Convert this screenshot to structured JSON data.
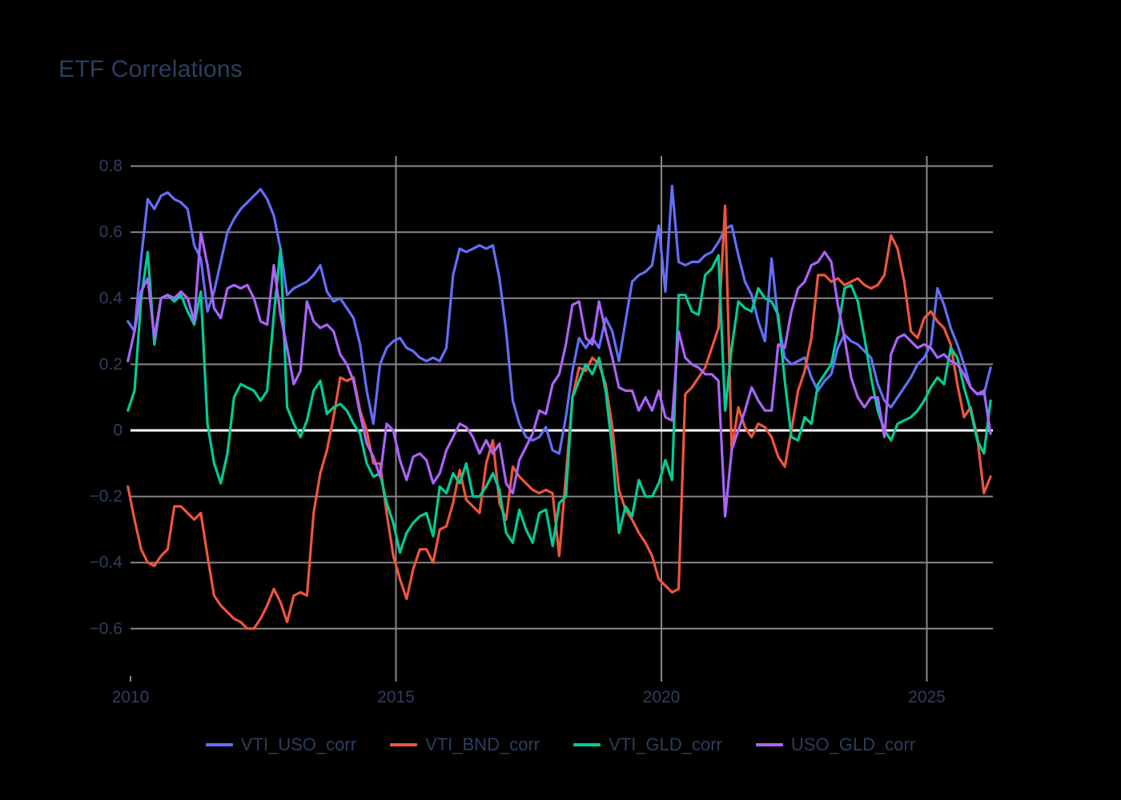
{
  "title": "ETF Correlations",
  "colors": {
    "background": "#000000",
    "text": "#2a3f5f",
    "gridline": "#888888",
    "zeroline": "#ffffff",
    "series_blue": "#636EFA",
    "series_red": "#EF553B",
    "series_green": "#00CC96",
    "series_purple": "#AB63FA"
  },
  "chart_data": {
    "type": "line",
    "title": "ETF Correlations",
    "xlabel": "",
    "ylabel": "",
    "grid": true,
    "legend_position": "bottom-center",
    "xlim": [
      2009.93,
      2026.33
    ],
    "ylim": [
      -0.74,
      0.83
    ],
    "x_ticks": [
      2010,
      2015,
      2020,
      2025
    ],
    "x_tick_labels": [
      "2010",
      "2015",
      "2020",
      "2025"
    ],
    "y_ticks": [
      0.8,
      0.6,
      0.4,
      0.2,
      0,
      -0.2,
      -0.4,
      -0.6
    ],
    "y_tick_labels": [
      "0.8",
      "0.6",
      "0.4",
      "0.2",
      "0",
      "−0.2",
      "−0.4",
      "−0.6"
    ],
    "zeroline_value": 0,
    "x_start": 2009.95,
    "x_step": 0.125,
    "series": [
      {
        "name": "VTI_USO_corr",
        "color": "#636EFA",
        "values": [
          0.33,
          0.3,
          0.52,
          0.7,
          0.67,
          0.71,
          0.72,
          0.7,
          0.69,
          0.67,
          0.56,
          0.52,
          0.36,
          0.42,
          0.51,
          0.6,
          0.64,
          0.67,
          0.69,
          0.71,
          0.73,
          0.7,
          0.65,
          0.55,
          0.41,
          0.43,
          0.44,
          0.45,
          0.47,
          0.5,
          0.42,
          0.39,
          0.4,
          0.37,
          0.34,
          0.26,
          0.12,
          0.02,
          0.2,
          0.25,
          0.27,
          0.28,
          0.25,
          0.24,
          0.22,
          0.21,
          0.22,
          0.21,
          0.25,
          0.47,
          0.55,
          0.54,
          0.55,
          0.56,
          0.55,
          0.56,
          0.46,
          0.3,
          0.09,
          0.02,
          -0.02,
          -0.03,
          -0.02,
          0.01,
          -0.06,
          -0.07,
          0.04,
          0.18,
          0.28,
          0.25,
          0.28,
          0.25,
          0.34,
          0.3,
          0.21,
          0.33,
          0.45,
          0.47,
          0.48,
          0.5,
          0.62,
          0.42,
          0.74,
          0.51,
          0.5,
          0.51,
          0.51,
          0.53,
          0.54,
          0.57,
          0.61,
          0.62,
          0.53,
          0.45,
          0.41,
          0.33,
          0.27,
          0.52,
          0.33,
          0.22,
          0.2,
          0.21,
          0.22,
          0.16,
          0.12,
          0.15,
          0.17,
          0.25,
          0.29,
          0.27,
          0.26,
          0.24,
          0.22,
          0.14,
          0.09,
          0.07,
          0.1,
          0.13,
          0.16,
          0.2,
          0.22,
          0.26,
          0.43,
          0.38,
          0.31,
          0.26,
          0.2,
          0.13,
          0.11,
          0.11,
          0.19
        ]
      },
      {
        "name": "VTI_BND_corr",
        "color": "#EF553B",
        "values": [
          -0.17,
          -0.27,
          -0.36,
          -0.4,
          -0.41,
          -0.38,
          -0.36,
          -0.23,
          -0.23,
          -0.25,
          -0.27,
          -0.25,
          -0.38,
          -0.5,
          -0.53,
          -0.55,
          -0.57,
          -0.58,
          -0.6,
          -0.6,
          -0.57,
          -0.53,
          -0.48,
          -0.52,
          -0.58,
          -0.5,
          -0.49,
          -0.5,
          -0.25,
          -0.13,
          -0.06,
          0.04,
          0.16,
          0.15,
          0.16,
          0.06,
          0.0,
          -0.1,
          -0.1,
          -0.25,
          -0.38,
          -0.45,
          -0.51,
          -0.42,
          -0.36,
          -0.36,
          -0.4,
          -0.3,
          -0.29,
          -0.22,
          -0.12,
          -0.21,
          -0.23,
          -0.25,
          -0.1,
          -0.03,
          -0.22,
          -0.27,
          -0.11,
          -0.14,
          -0.16,
          -0.18,
          -0.19,
          -0.18,
          -0.19,
          -0.38,
          -0.14,
          0.1,
          0.19,
          0.18,
          0.22,
          0.2,
          0.14,
          0.01,
          -0.18,
          -0.24,
          -0.27,
          -0.31,
          -0.34,
          -0.38,
          -0.45,
          -0.47,
          -0.49,
          -0.48,
          0.11,
          0.13,
          0.16,
          0.19,
          0.25,
          0.31,
          0.68,
          -0.06,
          0.07,
          0.01,
          -0.02,
          0.02,
          0.01,
          -0.02,
          -0.08,
          -0.11,
          0.0,
          0.12,
          0.18,
          0.28,
          0.47,
          0.47,
          0.45,
          0.46,
          0.44,
          0.45,
          0.46,
          0.44,
          0.43,
          0.44,
          0.47,
          0.59,
          0.55,
          0.45,
          0.3,
          0.28,
          0.34,
          0.36,
          0.33,
          0.31,
          0.26,
          0.14,
          0.04,
          0.07,
          -0.02,
          -0.19,
          -0.14
        ]
      },
      {
        "name": "VTI_GLD_corr",
        "color": "#00CC96",
        "values": [
          0.06,
          0.12,
          0.4,
          0.54,
          0.26,
          0.4,
          0.41,
          0.39,
          0.41,
          0.36,
          0.32,
          0.42,
          0.02,
          -0.1,
          -0.16,
          -0.07,
          0.1,
          0.14,
          0.13,
          0.12,
          0.09,
          0.12,
          0.35,
          0.55,
          0.07,
          0.02,
          -0.02,
          0.03,
          0.12,
          0.15,
          0.05,
          0.07,
          0.08,
          0.06,
          0.02,
          -0.01,
          -0.1,
          -0.14,
          -0.13,
          -0.22,
          -0.28,
          -0.37,
          -0.31,
          -0.28,
          -0.26,
          -0.25,
          -0.32,
          -0.17,
          -0.19,
          -0.13,
          -0.16,
          -0.1,
          -0.2,
          -0.2,
          -0.17,
          -0.13,
          -0.18,
          -0.31,
          -0.34,
          -0.24,
          -0.3,
          -0.34,
          -0.25,
          -0.24,
          -0.35,
          -0.22,
          -0.2,
          0.1,
          0.15,
          0.2,
          0.17,
          0.22,
          0.12,
          -0.06,
          -0.31,
          -0.23,
          -0.26,
          -0.15,
          -0.2,
          -0.2,
          -0.16,
          -0.09,
          -0.15,
          0.41,
          0.41,
          0.36,
          0.35,
          0.47,
          0.49,
          0.53,
          0.06,
          0.25,
          0.39,
          0.37,
          0.36,
          0.43,
          0.4,
          0.39,
          0.35,
          0.15,
          -0.02,
          -0.03,
          0.04,
          0.02,
          0.14,
          0.17,
          0.2,
          0.3,
          0.43,
          0.44,
          0.39,
          0.28,
          0.16,
          0.06,
          0.0,
          -0.03,
          0.02,
          0.03,
          0.04,
          0.06,
          0.09,
          0.13,
          0.16,
          0.14,
          0.25,
          0.22,
          0.13,
          0.06,
          -0.03,
          -0.07,
          0.09
        ]
      },
      {
        "name": "USO_GLD_corr",
        "color": "#AB63FA",
        "values": [
          0.21,
          0.3,
          0.42,
          0.46,
          0.28,
          0.4,
          0.41,
          0.4,
          0.42,
          0.4,
          0.33,
          0.6,
          0.5,
          0.37,
          0.34,
          0.43,
          0.44,
          0.43,
          0.44,
          0.4,
          0.33,
          0.32,
          0.5,
          0.35,
          0.25,
          0.14,
          0.18,
          0.39,
          0.33,
          0.31,
          0.32,
          0.3,
          0.23,
          0.2,
          0.15,
          0.05,
          -0.04,
          -0.08,
          -0.14,
          0.02,
          0.0,
          -0.09,
          -0.15,
          -0.08,
          -0.07,
          -0.09,
          -0.16,
          -0.13,
          -0.06,
          -0.02,
          0.02,
          0.01,
          -0.02,
          -0.07,
          -0.03,
          -0.07,
          -0.04,
          -0.16,
          -0.19,
          -0.09,
          -0.05,
          -0.01,
          0.06,
          0.05,
          0.14,
          0.17,
          0.26,
          0.38,
          0.39,
          0.28,
          0.26,
          0.39,
          0.3,
          0.22,
          0.13,
          0.12,
          0.12,
          0.06,
          0.1,
          0.06,
          0.12,
          0.04,
          0.03,
          0.3,
          0.22,
          0.2,
          0.19,
          0.17,
          0.17,
          0.15,
          -0.26,
          -0.06,
          0.0,
          0.06,
          0.13,
          0.09,
          0.06,
          0.06,
          0.26,
          0.25,
          0.36,
          0.43,
          0.45,
          0.5,
          0.51,
          0.54,
          0.51,
          0.38,
          0.28,
          0.16,
          0.1,
          0.07,
          0.1,
          0.1,
          -0.02,
          0.23,
          0.28,
          0.29,
          0.27,
          0.25,
          0.26,
          0.25,
          0.22,
          0.23,
          0.21,
          0.2,
          0.17,
          0.13,
          0.11,
          0.12,
          -0.01
        ]
      }
    ]
  },
  "legend": {
    "items": [
      {
        "label": "VTI_USO_corr",
        "color": "#636EFA"
      },
      {
        "label": "VTI_BND_corr",
        "color": "#EF553B"
      },
      {
        "label": "VTI_GLD_corr",
        "color": "#00CC96"
      },
      {
        "label": "USO_GLD_corr",
        "color": "#AB63FA"
      }
    ]
  }
}
